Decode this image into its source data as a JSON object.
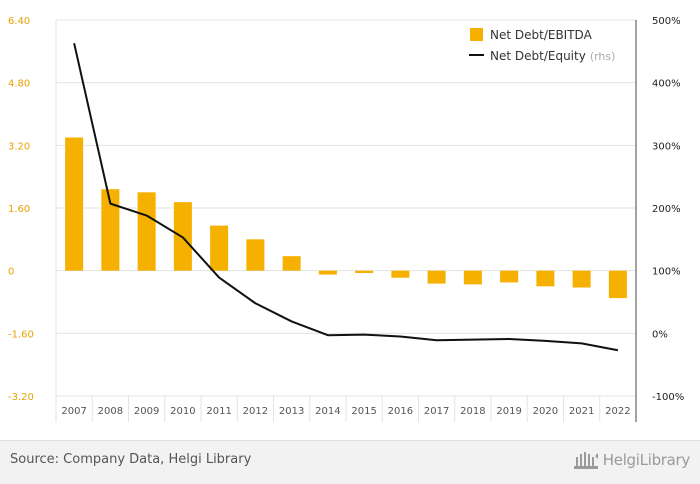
{
  "chart_data": {
    "type": "bar",
    "categories": [
      "2007",
      "2008",
      "2009",
      "2010",
      "2011",
      "2012",
      "2013",
      "2014",
      "2015",
      "2016",
      "2017",
      "2018",
      "2019",
      "2020",
      "2021",
      "2022"
    ],
    "series": [
      {
        "name": "Net Debt/EBITDA",
        "type": "bar",
        "axis": "left",
        "color": "#f5b000",
        "values": [
          3.4,
          2.08,
          2.0,
          1.75,
          1.15,
          0.8,
          0.37,
          -0.1,
          -0.06,
          -0.18,
          -0.33,
          -0.35,
          -0.3,
          -0.4,
          -0.43,
          -0.7
        ]
      },
      {
        "name": "Net Debt/Equity",
        "name_suffix": "(rhs)",
        "type": "line",
        "axis": "right",
        "color": "#111111",
        "values": [
          463,
          207,
          188,
          153,
          89,
          48,
          19,
          -3,
          -2,
          -5,
          -11,
          -10,
          -9,
          -12,
          -16,
          -27
        ]
      }
    ],
    "left_axis": {
      "ylim": [
        -3.2,
        6.4
      ],
      "ticks": [
        6.4,
        4.8,
        3.2,
        1.6,
        0,
        -1.6,
        -3.2
      ],
      "tick_labels": [
        "6.40",
        "4.80",
        "3.20",
        "1.60",
        "0",
        "-1.60",
        "-3.20"
      ]
    },
    "right_axis": {
      "ylim": [
        -100,
        500
      ],
      "ticks": [
        500,
        400,
        300,
        200,
        100,
        0,
        -100
      ],
      "tick_labels": [
        "500%",
        "400%",
        "300%",
        "200%",
        "100%",
        "0%",
        "-100%"
      ]
    },
    "grid": true,
    "legend_position": "top-right",
    "title": "",
    "xlabel": "",
    "ylabel": ""
  },
  "footer": {
    "source": "Source: Company Data, Helgi Library",
    "brand": "HelgiLibrary"
  }
}
